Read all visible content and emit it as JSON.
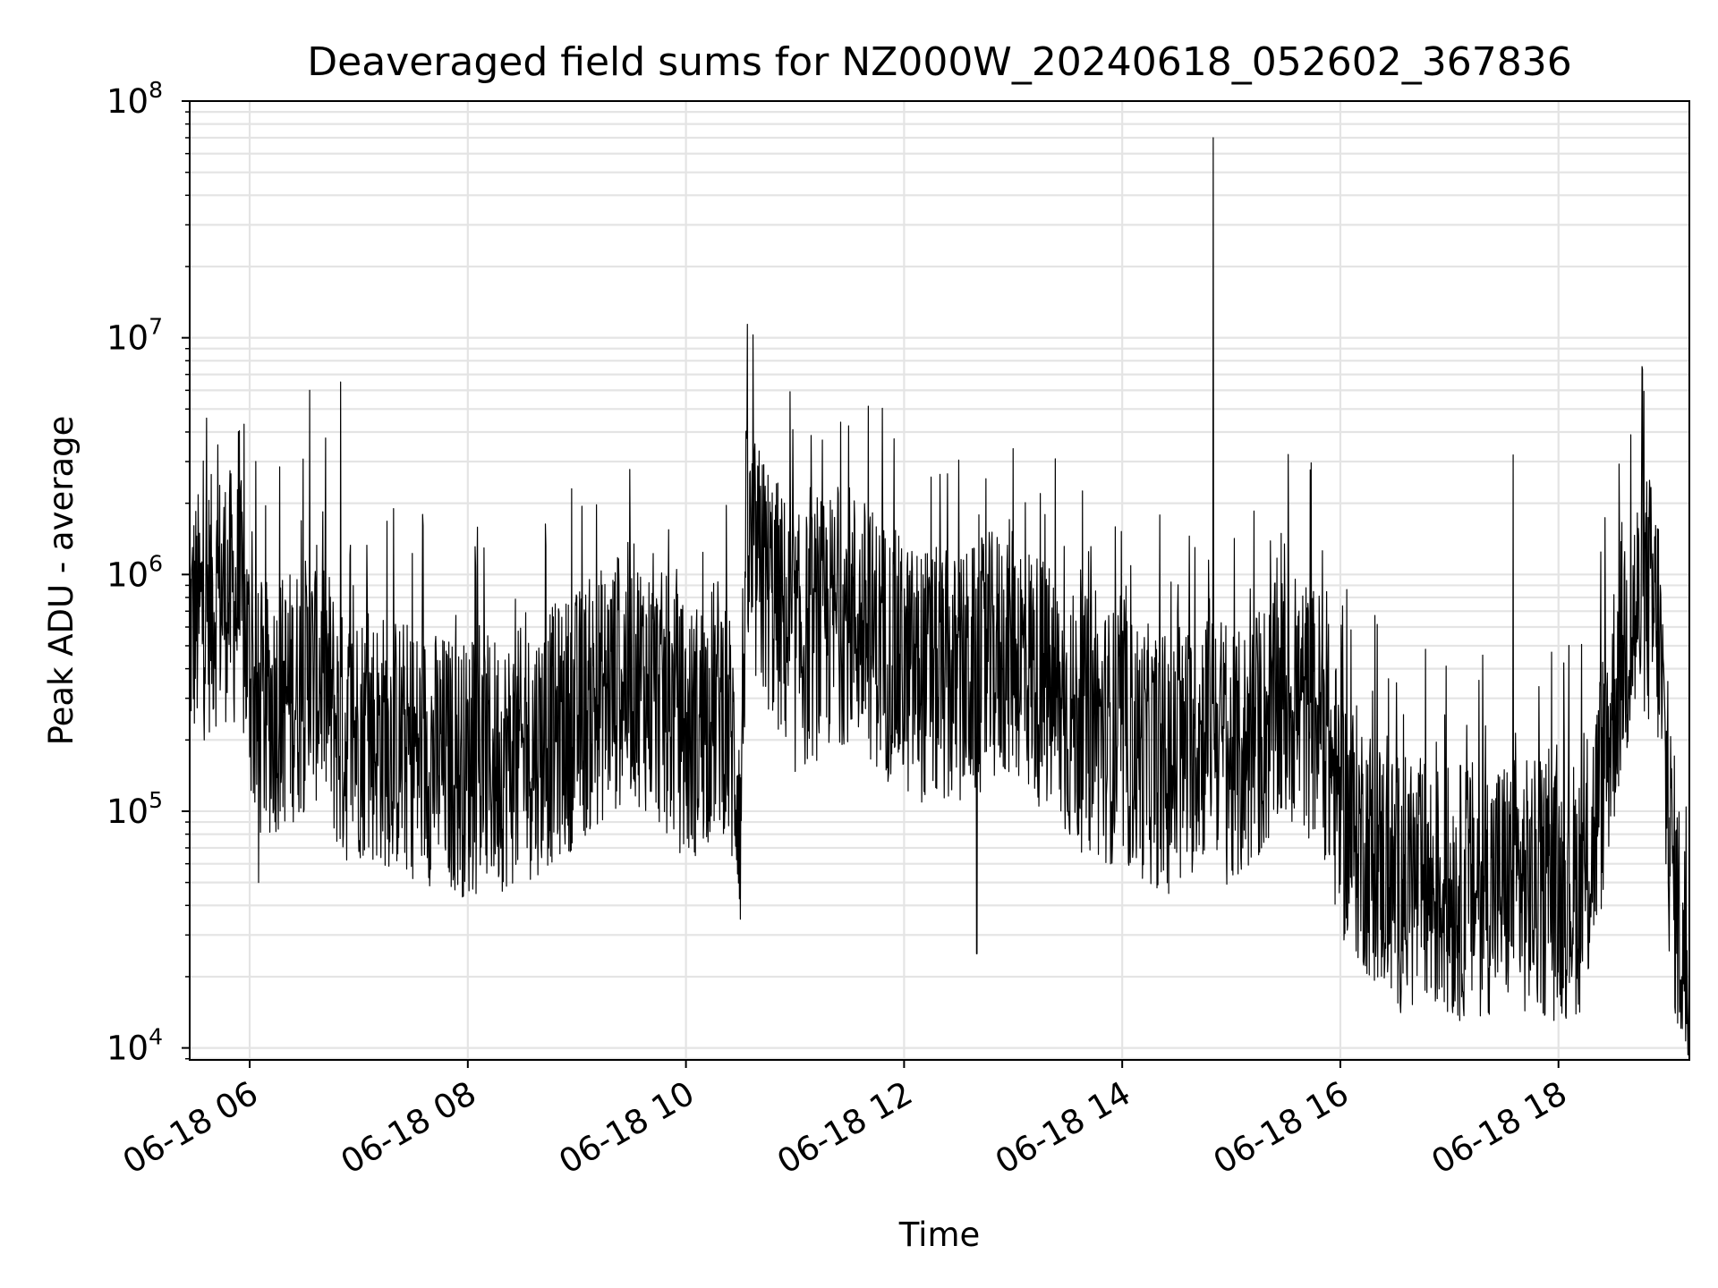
{
  "chart_data": {
    "type": "line",
    "title": "Deaveraged field sums for NZ000W_20240618_052602_367836",
    "xlabel": "Time",
    "ylabel": "Peak ADU - average",
    "yscale": "log",
    "ylim": [
      8900,
      100000000
    ],
    "xlim": [
      "2024-06-18 05:27",
      "2024-06-18 19:12"
    ],
    "grid": true,
    "line_color": "#000000",
    "x_ticks": [
      {
        "value": "2024-06-18 06:00",
        "label": "06-18 06"
      },
      {
        "value": "2024-06-18 08:00",
        "label": "06-18 08"
      },
      {
        "value": "2024-06-18 10:00",
        "label": "06-18 10"
      },
      {
        "value": "2024-06-18 12:00",
        "label": "06-18 12"
      },
      {
        "value": "2024-06-18 14:00",
        "label": "06-18 14"
      },
      {
        "value": "2024-06-18 16:00",
        "label": "06-18 16"
      },
      {
        "value": "2024-06-18 18:00",
        "label": "06-18 18"
      }
    ],
    "y_ticks": [
      {
        "value": 10000,
        "base": "10",
        "exp": "4"
      },
      {
        "value": 100000,
        "base": "10",
        "exp": "5"
      },
      {
        "value": 1000000,
        "base": "10",
        "exp": "6"
      },
      {
        "value": 10000000,
        "base": "10",
        "exp": "7"
      },
      {
        "value": 100000000,
        "base": "10",
        "exp": "8"
      }
    ],
    "series": [
      {
        "x": [
          "2024-06-18 05:27",
          "2024-06-18 05:35",
          "2024-06-18 05:45",
          "2024-06-18 05:55",
          "2024-06-18 06:04",
          "2024-06-18 06:20",
          "2024-06-18 06:33",
          "2024-06-18 06:40",
          "2024-06-18 06:50",
          "2024-06-18 07:00",
          "2024-06-18 07:30",
          "2024-06-18 08:00",
          "2024-06-18 08:30",
          "2024-06-18 09:00",
          "2024-06-18 09:30",
          "2024-06-18 09:55",
          "2024-06-18 10:00",
          "2024-06-18 10:20",
          "2024-06-18 10:30",
          "2024-06-18 10:33",
          "2024-06-18 10:45",
          "2024-06-18 11:00",
          "2024-06-18 11:30",
          "2024-06-18 12:00",
          "2024-06-18 12:30",
          "2024-06-18 13:00",
          "2024-06-18 13:30",
          "2024-06-18 14:00",
          "2024-06-18 14:30",
          "2024-06-18 14:50",
          "2024-06-18 15:00",
          "2024-06-18 15:30",
          "2024-06-18 15:50",
          "2024-06-18 16:00",
          "2024-06-18 16:15",
          "2024-06-18 16:30",
          "2024-06-18 17:00",
          "2024-06-18 17:30",
          "2024-06-18 18:00",
          "2024-06-18 18:15",
          "2024-06-18 18:25",
          "2024-06-18 18:35",
          "2024-06-18 18:48",
          "2024-06-18 18:55",
          "2024-06-18 19:00",
          "2024-06-18 19:05",
          "2024-06-18 19:12"
        ],
        "y": [
          600000,
          700000,
          850000,
          750000,
          250000,
          300000,
          350000,
          400000,
          200000,
          220000,
          180000,
          150000,
          170000,
          250000,
          400000,
          250000,
          200000,
          300000,
          120000,
          1200000,
          900000,
          500000,
          700000,
          400000,
          350000,
          500000,
          250000,
          200000,
          150000,
          250000,
          150000,
          300000,
          250000,
          100000,
          70000,
          50000,
          45000,
          50000,
          45000,
          50000,
          150000,
          500000,
          800000,
          600000,
          100000,
          40000,
          18000
        ],
        "peaks": [
          [
            "2024-06-18 06:33",
            6000000
          ],
          [
            "2024-06-18 06:50",
            6500000
          ],
          [
            "2024-06-18 14:50",
            70000000
          ],
          [
            "2024-06-18 17:35",
            3200000
          ],
          [
            "2024-06-18 13:00",
            3400000
          ],
          [
            "2024-06-18 11:15",
            3700000
          ],
          [
            "2024-06-18 10:42",
            2900000
          ],
          [
            "2024-06-18 18:50",
            2500000
          ],
          [
            "2024-06-18 12:40",
            25000
          ],
          [
            "2024-06-18 10:30",
            35000
          ],
          [
            "2024-06-18 06:05",
            50000
          ],
          [
            "2024-06-18 16:50",
            18000
          ],
          [
            "2024-06-18 19:11",
            13000
          ]
        ]
      }
    ]
  }
}
